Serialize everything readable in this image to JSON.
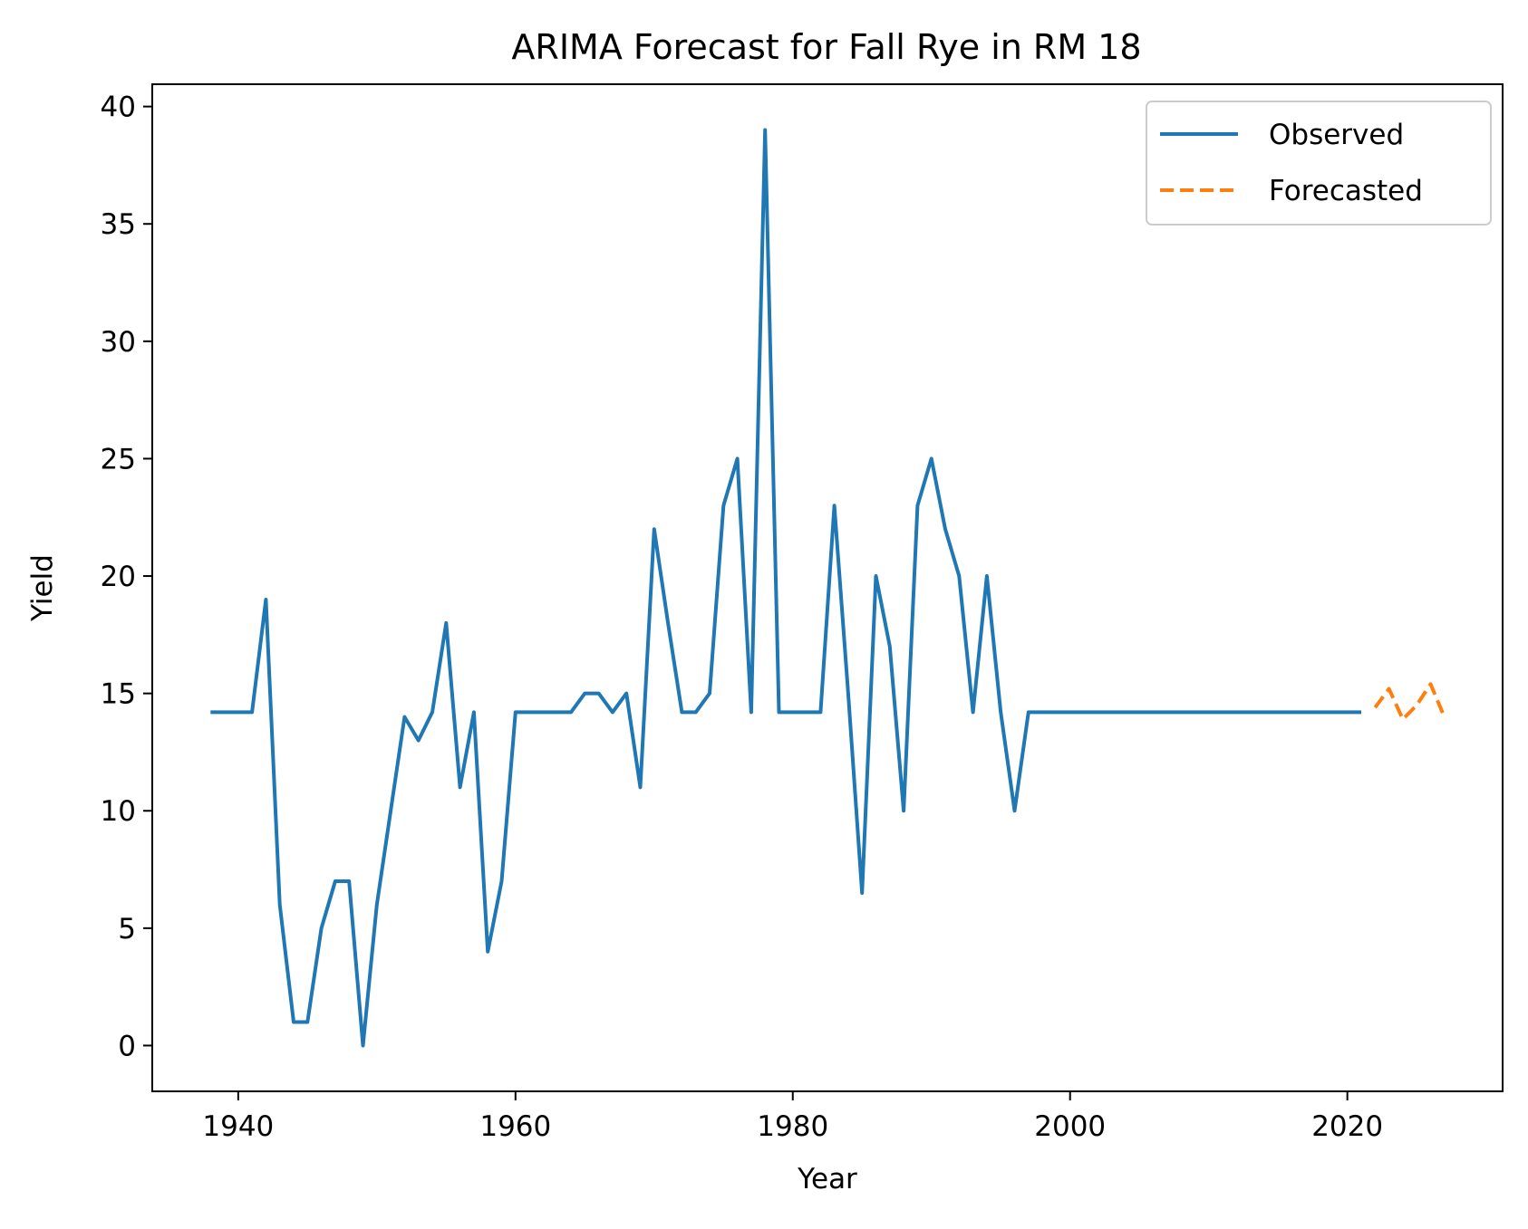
{
  "chart_data": {
    "type": "line",
    "title": "ARIMA Forecast for Fall Rye in RM 18",
    "xlabel": "Year",
    "ylabel": "Yield",
    "xlim": [
      1933.8,
      2031.2
    ],
    "ylim": [
      -1.95,
      40.95
    ],
    "xticks": [
      1940,
      1960,
      1980,
      2000,
      2020
    ],
    "yticks": [
      0,
      5,
      10,
      15,
      20,
      25,
      30,
      35,
      40
    ],
    "grid": false,
    "legend_position": "top-right",
    "series": [
      {
        "name": "Observed",
        "color": "#1f77b4",
        "style": "solid",
        "x": [
          1938,
          1939,
          1940,
          1941,
          1942,
          1943,
          1944,
          1945,
          1946,
          1947,
          1948,
          1949,
          1950,
          1951,
          1952,
          1953,
          1954,
          1955,
          1956,
          1957,
          1958,
          1959,
          1960,
          1961,
          1962,
          1963,
          1964,
          1965,
          1966,
          1967,
          1968,
          1969,
          1970,
          1971,
          1972,
          1973,
          1974,
          1975,
          1976,
          1977,
          1978,
          1979,
          1980,
          1981,
          1982,
          1983,
          1984,
          1985,
          1986,
          1987,
          1988,
          1989,
          1990,
          1991,
          1992,
          1993,
          1994,
          1995,
          1996,
          1997,
          1998,
          1999,
          2000,
          2001,
          2002,
          2003,
          2004,
          2005,
          2006,
          2007,
          2008,
          2009,
          2010,
          2011,
          2012,
          2013,
          2014,
          2015,
          2016,
          2017,
          2018,
          2019,
          2020,
          2021
        ],
        "values": [
          14.2,
          14.2,
          14.2,
          14.2,
          19,
          6,
          1,
          1,
          5,
          7,
          7,
          0,
          6,
          10,
          14,
          13,
          14.2,
          18,
          11,
          14.2,
          4,
          7,
          14.2,
          14.2,
          14.2,
          14.2,
          14.2,
          15,
          15,
          14.2,
          15,
          11,
          22,
          18,
          14.2,
          14.2,
          15,
          23,
          25,
          14.2,
          39,
          14.2,
          14.2,
          14.2,
          14.2,
          23,
          15,
          6.5,
          20,
          17,
          10,
          23,
          25,
          22,
          20,
          14.2,
          20,
          14.2,
          10,
          14.2,
          14.2,
          14.2,
          14.2,
          14.2,
          14.2,
          14.2,
          14.2,
          14.2,
          14.2,
          14.2,
          14.2,
          14.2,
          14.2,
          14.2,
          14.2,
          14.2,
          14.2,
          14.2,
          14.2,
          14.2,
          14.2,
          14.2,
          14.2,
          14.2
        ]
      },
      {
        "name": "Forecasted",
        "color": "#ff7f0e",
        "style": "dashed",
        "x": [
          2022,
          2023,
          2024,
          2025,
          2026,
          2027
        ],
        "values": [
          14.4,
          15.2,
          13.9,
          14.5,
          15.4,
          14.0
        ]
      }
    ]
  }
}
